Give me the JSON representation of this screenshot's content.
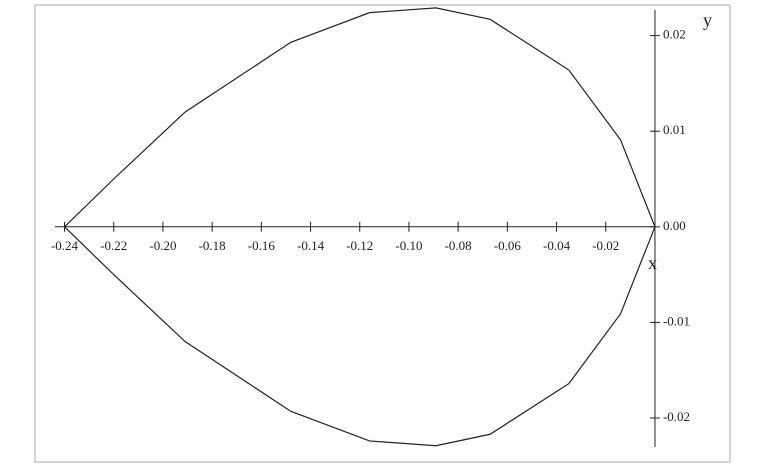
{
  "chart_data": {
    "type": "line",
    "x_label": "x",
    "y_label": "y",
    "xlim": [
      -0.252,
      0.0305
    ],
    "ylim": [
      -0.0246,
      0.0232
    ],
    "xticks": [
      -0.24,
      -0.22,
      {
        "value": -0.2,
        "label": "-0.20"
      },
      -0.18,
      -0.16,
      -0.14,
      -0.12,
      {
        "value": -0.1,
        "label": "-0.10"
      },
      -0.08,
      -0.06,
      -0.04,
      -0.02
    ],
    "yticks": [
      -0.02,
      -0.01,
      {
        "value": 0,
        "label": "0.00"
      },
      0.01,
      0.02
    ],
    "series": [
      {
        "color": "#222222",
        "x": [
          -0.24,
          -0.22,
          -0.191,
          -0.148,
          -0.116,
          -0.089,
          -0.067,
          -0.035,
          -0.014,
          0,
          -0.014,
          -0.035,
          -0.067,
          -0.089,
          -0.116,
          -0.148,
          -0.191,
          -0.22,
          -0.24
        ],
        "values": [
          0,
          0.005,
          0.012,
          0.0193,
          0.0224,
          0.0229,
          0.0217,
          0.0164,
          0.0091,
          0,
          -0.0091,
          -0.0164,
          -0.0217,
          -0.0229,
          -0.0224,
          -0.0193,
          -0.012,
          -0.005,
          0
        ]
      }
    ]
  }
}
